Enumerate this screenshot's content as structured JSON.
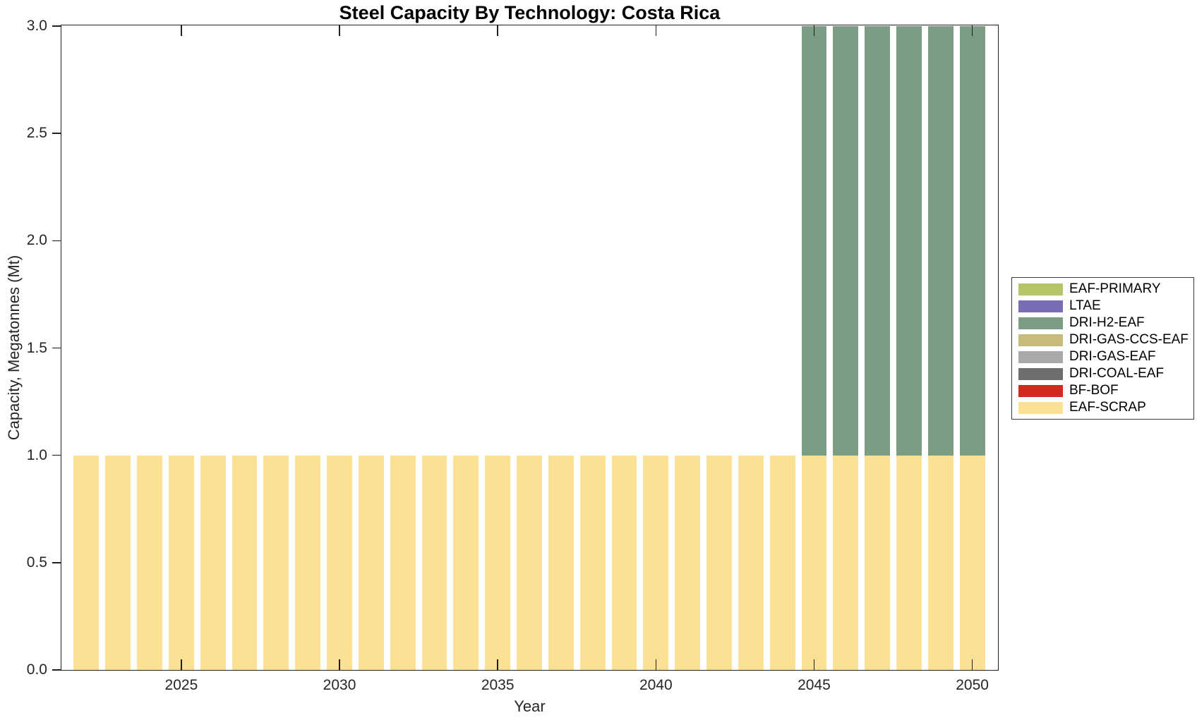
{
  "chart_data": {
    "type": "bar",
    "stacked": true,
    "title": "Steel Capacity By Technology: Costa Rica",
    "xlabel": "Year",
    "ylabel": "Capacity, Megatonnes (Mt)",
    "x": [
      2022,
      2023,
      2024,
      2025,
      2026,
      2027,
      2028,
      2029,
      2030,
      2031,
      2032,
      2033,
      2034,
      2035,
      2036,
      2037,
      2038,
      2039,
      2040,
      2041,
      2042,
      2043,
      2044,
      2045,
      2046,
      2047,
      2048,
      2049,
      2050
    ],
    "xtick_labels": [
      "2025",
      "2030",
      "2035",
      "2040",
      "2045",
      "2050"
    ],
    "ytick_labels": [
      "0.0",
      "0.5",
      "1.0",
      "1.5",
      "2.0",
      "2.5",
      "3.0"
    ],
    "ylim": [
      0,
      3
    ],
    "grid": false,
    "legend_position": "right-outside",
    "axis_color": "#1f1f1f",
    "background_color": "#ffffff",
    "series": [
      {
        "name": "EAF-PRIMARY",
        "color": "#b8c468",
        "values": [
          0,
          0,
          0,
          0,
          0,
          0,
          0,
          0,
          0,
          0,
          0,
          0,
          0,
          0,
          0,
          0,
          0,
          0,
          0,
          0,
          0,
          0,
          0,
          0,
          0,
          0,
          0,
          0,
          0
        ]
      },
      {
        "name": "LTAE",
        "color": "#7b6db4",
        "values": [
          0,
          0,
          0,
          0,
          0,
          0,
          0,
          0,
          0,
          0,
          0,
          0,
          0,
          0,
          0,
          0,
          0,
          0,
          0,
          0,
          0,
          0,
          0,
          0,
          0,
          0,
          0,
          0,
          0
        ]
      },
      {
        "name": "DRI-H2-EAF",
        "color": "#7d9c84",
        "values": [
          0,
          0,
          0,
          0,
          0,
          0,
          0,
          0,
          0,
          0,
          0,
          0,
          0,
          0,
          0,
          0,
          0,
          0,
          0,
          0,
          0,
          0,
          0,
          2,
          2,
          2,
          2,
          2,
          2
        ]
      },
      {
        "name": "DRI-GAS-CCS-EAF",
        "color": "#c6ba7d",
        "values": [
          0,
          0,
          0,
          0,
          0,
          0,
          0,
          0,
          0,
          0,
          0,
          0,
          0,
          0,
          0,
          0,
          0,
          0,
          0,
          0,
          0,
          0,
          0,
          0,
          0,
          0,
          0,
          0,
          0
        ]
      },
      {
        "name": "DRI-GAS-EAF",
        "color": "#a9a9a9",
        "values": [
          0,
          0,
          0,
          0,
          0,
          0,
          0,
          0,
          0,
          0,
          0,
          0,
          0,
          0,
          0,
          0,
          0,
          0,
          0,
          0,
          0,
          0,
          0,
          0,
          0,
          0,
          0,
          0,
          0
        ]
      },
      {
        "name": "DRI-COAL-EAF",
        "color": "#6e6e6e",
        "values": [
          0,
          0,
          0,
          0,
          0,
          0,
          0,
          0,
          0,
          0,
          0,
          0,
          0,
          0,
          0,
          0,
          0,
          0,
          0,
          0,
          0,
          0,
          0,
          0,
          0,
          0,
          0,
          0,
          0
        ]
      },
      {
        "name": "BF-BOF",
        "color": "#d2281e",
        "values": [
          0,
          0,
          0,
          0,
          0,
          0,
          0,
          0,
          0,
          0,
          0,
          0,
          0,
          0,
          0,
          0,
          0,
          0,
          0,
          0,
          0,
          0,
          0,
          0,
          0,
          0,
          0,
          0,
          0
        ]
      },
      {
        "name": "EAF-SCRAP",
        "color": "#fce195",
        "values": [
          1,
          1,
          1,
          1,
          1,
          1,
          1,
          1,
          1,
          1,
          1,
          1,
          1,
          1,
          1,
          1,
          1,
          1,
          1,
          1,
          1,
          1,
          1,
          1,
          1,
          1,
          1,
          1,
          1
        ]
      }
    ]
  }
}
